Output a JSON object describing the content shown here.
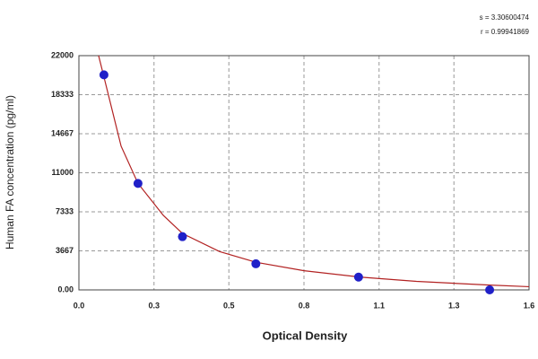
{
  "chart_data": {
    "type": "scatter",
    "x_label": "Optical Density",
    "y_label": "Human FA concentration (pg/ml)",
    "annotations": [
      "s = 3.30600474",
      "r = 0.99941869"
    ],
    "xlim": [
      0,
      1.6
    ],
    "xticks": [
      {
        "value": 0,
        "label": "0.0"
      },
      {
        "value": 0.267,
        "label": "0.3"
      },
      {
        "value": 0.533,
        "label": "0.5"
      },
      {
        "value": 0.8,
        "label": "0.8"
      },
      {
        "value": 1.067,
        "label": "1.1"
      },
      {
        "value": 1.333,
        "label": "1.3"
      },
      {
        "value": 1.6,
        "label": "1.6"
      }
    ],
    "ylim": [
      0,
      22000
    ],
    "yticks": [
      {
        "value": 0,
        "label": "0.00"
      },
      {
        "value": 3666.67,
        "label": "3667"
      },
      {
        "value": 7333.33,
        "label": "7333"
      },
      11000,
      {
        "value": 14666.67,
        "label": "14667"
      },
      {
        "value": 18333.33,
        "label": "18333"
      },
      22000
    ],
    "grid": true,
    "series": [
      {
        "kind": "points",
        "color": "#2020c8",
        "x": [
          0.089,
          0.21,
          0.368,
          0.629,
          0.994,
          1.46
        ],
        "values": [
          20200,
          10000,
          5000,
          2450,
          1200,
          0
        ]
      },
      {
        "kind": "line",
        "color": "#b22222",
        "x": [
          0.07,
          0.089,
          0.15,
          0.21,
          0.3,
          0.368,
          0.5,
          0.629,
          0.8,
          1.0,
          1.2,
          1.46,
          1.6
        ],
        "values": [
          22000,
          20000,
          13500,
          10000,
          7000,
          5300,
          3600,
          2600,
          1800,
          1200,
          800,
          450,
          300
        ]
      }
    ]
  }
}
